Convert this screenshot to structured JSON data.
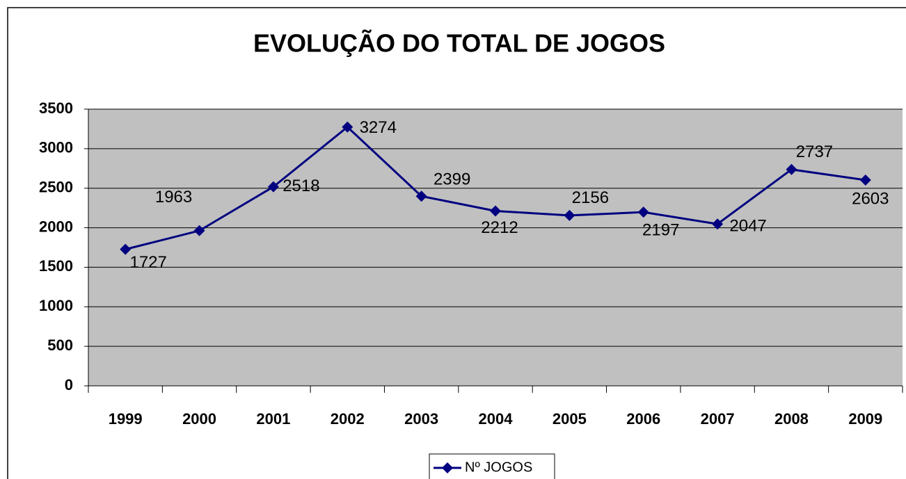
{
  "chart_data": {
    "type": "line",
    "title": "EVOLUÇÃO DO TOTAL DE JOGOS",
    "categories": [
      "1999",
      "2000",
      "2001",
      "2002",
      "2003",
      "2004",
      "2005",
      "2006",
      "2007",
      "2008",
      "2009"
    ],
    "series": [
      {
        "name": "Nº JOGOS",
        "color": "#000080",
        "values": [
          1727,
          1963,
          2518,
          3274,
          2399,
          2212,
          2156,
          2197,
          2047,
          2737,
          2603
        ]
      }
    ],
    "ylim": [
      0,
      3500
    ],
    "yticks": [
      0,
      500,
      1000,
      1500,
      2000,
      2500,
      3000,
      3500
    ],
    "grid": true,
    "legend": "bottom"
  }
}
